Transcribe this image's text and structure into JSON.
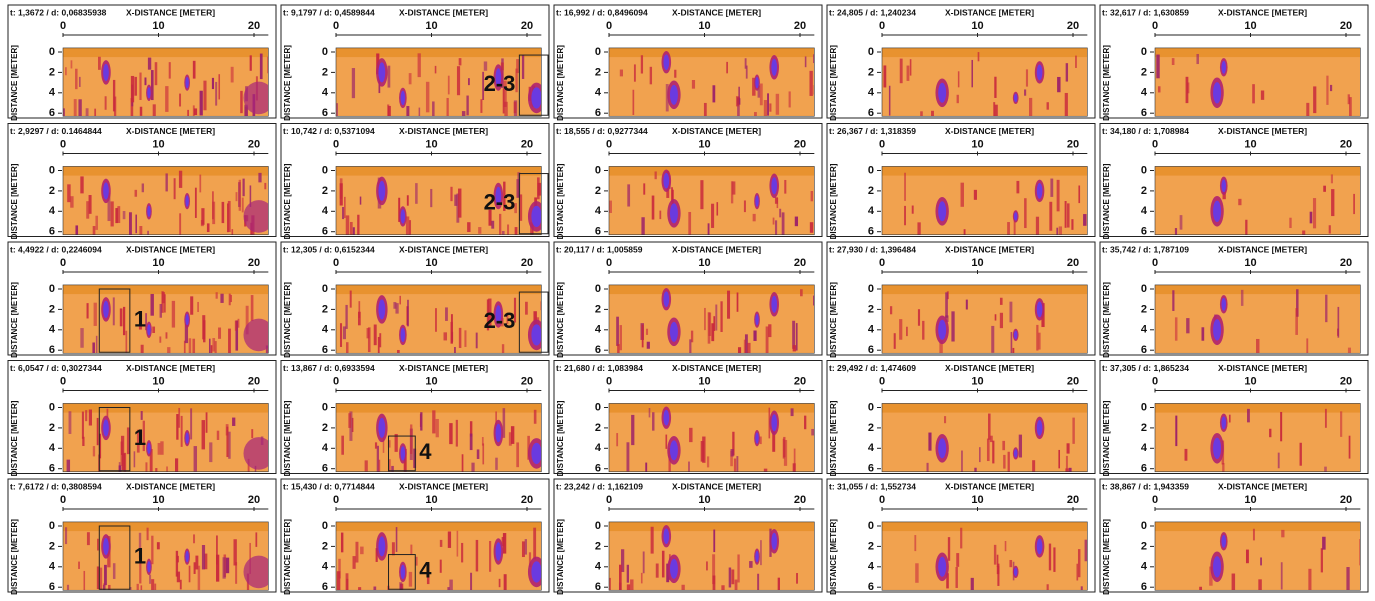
{
  "axes": {
    "x_label": "X-DISTANCE [METER]",
    "y_label": "DISTANCE [METER]",
    "x_ticks": [
      0,
      10,
      20
    ],
    "y_ticks": [
      0,
      2,
      4,
      6
    ]
  },
  "panels": [
    {
      "header": "t: 1,3672 / d: 0,06835938"
    },
    {
      "header": "t: 9,1797 / d: 0,4589844",
      "annotation": "2-3"
    },
    {
      "header": "t: 16,992 / d: 0,8496094"
    },
    {
      "header": "t: 24,805 / d: 1,240234"
    },
    {
      "header": "t: 32,617 / d: 1,630859"
    },
    {
      "header": "t: 2,9297 / d: 0.1464844"
    },
    {
      "header": "t: 10,742 / d: 0,5371094",
      "annotation": "2-3"
    },
    {
      "header": "t: 18,555 / d: 0,9277344"
    },
    {
      "header": "t: 26,367 / d: 1,318359"
    },
    {
      "header": "t: 34,180 / d: 1,708984"
    },
    {
      "header": "t: 4,4922 / d: 0,2246094",
      "annotation": "1"
    },
    {
      "header": "t: 12,305 / d: 0,6152344",
      "annotation": "2-3"
    },
    {
      "header": "t: 20,117 / d: 1,005859"
    },
    {
      "header": "t: 27,930 / d: 1,396484"
    },
    {
      "header": "t: 35,742 / d: 1,787109"
    },
    {
      "header": "t: 6,0547 / d: 0,3027344",
      "annotation": "1"
    },
    {
      "header": "t: 13,867 / d: 0,6933594",
      "annotation": "4"
    },
    {
      "header": "t: 21,680 / d: 1,083984"
    },
    {
      "header": "t: 29,492 / d: 1,474609"
    },
    {
      "header": "t: 37,305 / d: 1,865234"
    },
    {
      "header": "t: 7,6172 / d: 0,3808594",
      "annotation": "1"
    },
    {
      "header": "t: 15,430 / d: 0,7714844",
      "annotation": "4"
    },
    {
      "header": "t: 23,242 / d: 1,162109"
    },
    {
      "header": "t: 31,055 / d: 1,552734"
    },
    {
      "header": "t: 38,867 / d: 1,943359"
    }
  ]
}
